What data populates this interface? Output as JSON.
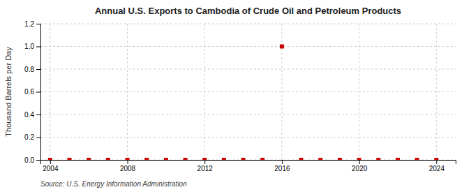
{
  "chart_data": {
    "type": "scatter",
    "title": "Annual U.S. Exports to Cambodia of Crude Oil and Petroleum Products",
    "y_label": "Thousand Barrels per Day",
    "source": "Source: U.S. Energy Information Administration",
    "x": [
      2004,
      2005,
      2006,
      2007,
      2008,
      2009,
      2010,
      2011,
      2012,
      2013,
      2014,
      2015,
      2016,
      2017,
      2018,
      2019,
      2020,
      2021,
      2022,
      2023,
      2024
    ],
    "values": [
      0,
      0,
      0,
      0,
      0,
      0,
      0,
      0,
      0,
      0,
      0,
      0,
      1.0,
      0,
      0,
      0,
      0,
      0,
      0,
      0,
      0
    ],
    "color": "#cc0000",
    "marker": "square",
    "xlim": [
      2003.5,
      2025
    ],
    "xticks": [
      2004,
      2008,
      2012,
      2016,
      2020,
      2024
    ],
    "ylim": [
      0,
      1.2
    ],
    "yticks": [
      {
        "value": 0.0,
        "label": "0.0"
      },
      0.2,
      0.4,
      0.6,
      0.8,
      {
        "value": 1.0,
        "label": "1.0"
      },
      1.2
    ],
    "grid": true
  }
}
